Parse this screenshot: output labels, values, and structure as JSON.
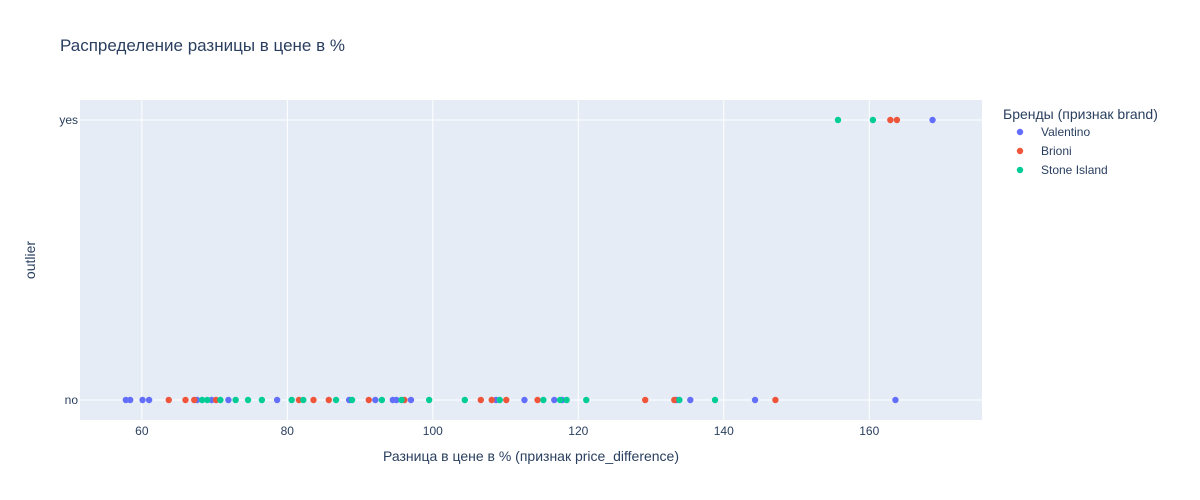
{
  "chart_data": {
    "type": "scatter",
    "title": "Распределение разницы в цене в %",
    "xlabel": "Разница в цене в % (признак price_difference)",
    "ylabel": "outlier",
    "xlim": [
      51.5,
      175.5
    ],
    "x_ticks": [
      60,
      80,
      100,
      120,
      140,
      160
    ],
    "y_categories": [
      "no",
      "yes"
    ],
    "grid": true,
    "plot_background": "#e5ecf6",
    "legend": {
      "title": "Бренды (признак brand)",
      "placement": "right"
    },
    "series": [
      {
        "name": "Valentino",
        "color": "#636efa",
        "points": [
          {
            "x": 57.8,
            "y": "no"
          },
          {
            "x": 58.4,
            "y": "no"
          },
          {
            "x": 60.1,
            "y": "no"
          },
          {
            "x": 61.0,
            "y": "no"
          },
          {
            "x": 67.6,
            "y": "no"
          },
          {
            "x": 69.6,
            "y": "no"
          },
          {
            "x": 71.9,
            "y": "no"
          },
          {
            "x": 78.6,
            "y": "no"
          },
          {
            "x": 88.5,
            "y": "no"
          },
          {
            "x": 92.1,
            "y": "no"
          },
          {
            "x": 94.5,
            "y": "no"
          },
          {
            "x": 95.0,
            "y": "no"
          },
          {
            "x": 97.0,
            "y": "no"
          },
          {
            "x": 108.7,
            "y": "no"
          },
          {
            "x": 112.6,
            "y": "no"
          },
          {
            "x": 116.7,
            "y": "no"
          },
          {
            "x": 117.8,
            "y": "no"
          },
          {
            "x": 133.5,
            "y": "no"
          },
          {
            "x": 135.4,
            "y": "no"
          },
          {
            "x": 144.3,
            "y": "no"
          },
          {
            "x": 163.6,
            "y": "no"
          },
          {
            "x": 168.7,
            "y": "yes"
          }
        ]
      },
      {
        "name": "Brioni",
        "color": "#ef553b",
        "points": [
          {
            "x": 63.7,
            "y": "no"
          },
          {
            "x": 66.0,
            "y": "no"
          },
          {
            "x": 67.2,
            "y": "no"
          },
          {
            "x": 70.2,
            "y": "no"
          },
          {
            "x": 81.6,
            "y": "no"
          },
          {
            "x": 83.6,
            "y": "no"
          },
          {
            "x": 85.7,
            "y": "no"
          },
          {
            "x": 91.2,
            "y": "no"
          },
          {
            "x": 96.1,
            "y": "no"
          },
          {
            "x": 106.6,
            "y": "no"
          },
          {
            "x": 108.1,
            "y": "no"
          },
          {
            "x": 110.1,
            "y": "no"
          },
          {
            "x": 114.4,
            "y": "no"
          },
          {
            "x": 129.2,
            "y": "no"
          },
          {
            "x": 133.2,
            "y": "no"
          },
          {
            "x": 147.1,
            "y": "no"
          },
          {
            "x": 162.9,
            "y": "yes"
          },
          {
            "x": 163.8,
            "y": "yes"
          }
        ]
      },
      {
        "name": "Stone Island",
        "color": "#00cc96",
        "points": [
          {
            "x": 68.3,
            "y": "no"
          },
          {
            "x": 69.0,
            "y": "no"
          },
          {
            "x": 70.8,
            "y": "no"
          },
          {
            "x": 72.9,
            "y": "no"
          },
          {
            "x": 74.6,
            "y": "no"
          },
          {
            "x": 76.5,
            "y": "no"
          },
          {
            "x": 80.6,
            "y": "no"
          },
          {
            "x": 82.2,
            "y": "no"
          },
          {
            "x": 86.7,
            "y": "no"
          },
          {
            "x": 88.9,
            "y": "no"
          },
          {
            "x": 93.0,
            "y": "no"
          },
          {
            "x": 95.7,
            "y": "no"
          },
          {
            "x": 99.5,
            "y": "no"
          },
          {
            "x": 104.4,
            "y": "no"
          },
          {
            "x": 109.2,
            "y": "no"
          },
          {
            "x": 115.2,
            "y": "no"
          },
          {
            "x": 117.5,
            "y": "no"
          },
          {
            "x": 118.4,
            "y": "no"
          },
          {
            "x": 121.1,
            "y": "no"
          },
          {
            "x": 133.9,
            "y": "no"
          },
          {
            "x": 138.8,
            "y": "no"
          },
          {
            "x": 155.7,
            "y": "yes"
          },
          {
            "x": 160.5,
            "y": "yes"
          }
        ]
      }
    ]
  }
}
